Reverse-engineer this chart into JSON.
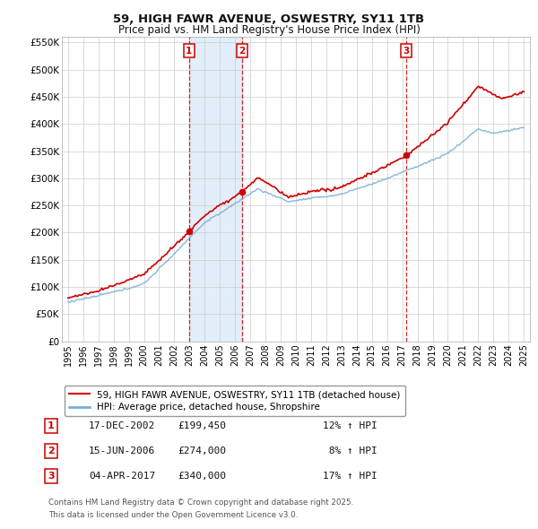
{
  "title": "59, HIGH FAWR AVENUE, OSWESTRY, SY11 1TB",
  "subtitle": "Price paid vs. HM Land Registry's House Price Index (HPI)",
  "ylim": [
    0,
    560000
  ],
  "yticks": [
    0,
    50000,
    100000,
    150000,
    200000,
    250000,
    300000,
    350000,
    400000,
    450000,
    500000,
    550000
  ],
  "ytick_labels": [
    "£0",
    "£50K",
    "£100K",
    "£150K",
    "£200K",
    "£250K",
    "£300K",
    "£350K",
    "£400K",
    "£450K",
    "£500K",
    "£550K"
  ],
  "xmin": 1994.6,
  "xmax": 2025.4,
  "sales": [
    {
      "num": 1,
      "date": "17-DEC-2002",
      "x": 2002.96,
      "price": 199450,
      "pct": "12%"
    },
    {
      "num": 2,
      "date": "15-JUN-2006",
      "x": 2006.46,
      "price": 274000,
      "pct": "8%"
    },
    {
      "num": 3,
      "date": "04-APR-2017",
      "x": 2017.26,
      "price": 340000,
      "pct": "17%"
    }
  ],
  "legend_line1": "59, HIGH FAWR AVENUE, OSWESTRY, SY11 1TB (detached house)",
  "legend_line2": "HPI: Average price, detached house, Shropshire",
  "footer1": "Contains HM Land Registry data © Crown copyright and database right 2025.",
  "footer2": "This data is licensed under the Open Government Licence v3.0.",
  "hpi_color": "#7bafd4",
  "shade_color": "#d0e4f5",
  "price_color": "#cc0000",
  "vline_color": "#cc0000",
  "background_color": "#ffffff",
  "grid_color": "#cccccc"
}
